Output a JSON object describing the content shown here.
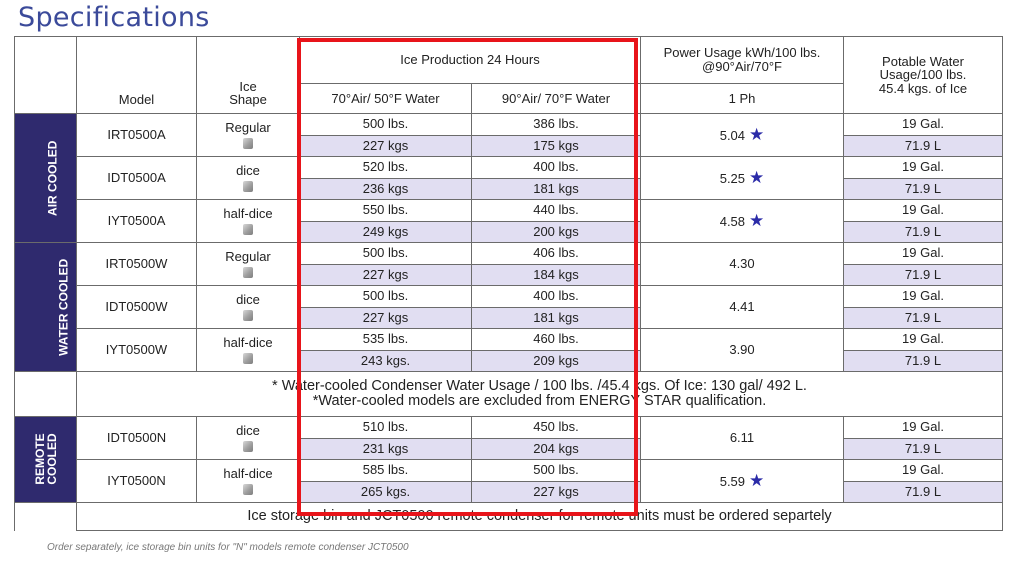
{
  "title": "Specifications",
  "headers": {
    "model": "Model",
    "ice_shape": "Ice Shape",
    "ice_production": "Ice Production 24 Hours",
    "condition_1": "70°Air/ 50°F Water",
    "condition_2": "90°Air/ 70°F Water",
    "power_usage": "Power Usage kWh/100 lbs. @90°Air/70°F",
    "phase": "1 Ph",
    "potable_water": "Potable Water Usage/100 lbs. 45.4 kgs. of Ice"
  },
  "groups": [
    {
      "label": "AIR COOLED",
      "rows": [
        {
          "model": "IRT0500A",
          "shape": "Regular",
          "p1_lbs": "500 lbs.",
          "p1_kgs": "227 kgs",
          "p2_lbs": "386 lbs.",
          "p2_kgs": "175 kgs",
          "power": "5.04",
          "energy_star": true,
          "water_gal": "19 Gal.",
          "water_l": "71.9 L"
        },
        {
          "model": "IDT0500A",
          "shape": "dice",
          "p1_lbs": "520 lbs.",
          "p1_kgs": "236 kgs",
          "p2_lbs": "400 lbs.",
          "p2_kgs": "181 kgs",
          "power": "5.25",
          "energy_star": true,
          "water_gal": "19 Gal.",
          "water_l": "71.9 L"
        },
        {
          "model": "IYT0500A",
          "shape": "half-dice",
          "p1_lbs": "550 lbs.",
          "p1_kgs": "249 kgs",
          "p2_lbs": "440 lbs.",
          "p2_kgs": "200 kgs",
          "power": "4.58",
          "energy_star": true,
          "water_gal": "19 Gal.",
          "water_l": "71.9 L"
        }
      ]
    },
    {
      "label": "WATER COOLED",
      "rows": [
        {
          "model": "IRT0500W",
          "shape": "Regular",
          "p1_lbs": "500 lbs.",
          "p1_kgs": "227 kgs",
          "p2_lbs": "406 lbs.",
          "p2_kgs": "184 kgs",
          "power": "4.30",
          "energy_star": false,
          "water_gal": "19 Gal.",
          "water_l": "71.9 L"
        },
        {
          "model": "IDT0500W",
          "shape": "dice",
          "p1_lbs": "500 lbs.",
          "p1_kgs": "227 kgs",
          "p2_lbs": "400 lbs.",
          "p2_kgs": "181 kgs",
          "power": "4.41",
          "energy_star": false,
          "water_gal": "19 Gal.",
          "water_l": "71.9 L"
        },
        {
          "model": "IYT0500W",
          "shape": "half-dice",
          "p1_lbs": "535 lbs.",
          "p1_kgs": "243 kgs.",
          "p2_lbs": "460 lbs.",
          "p2_kgs": "209 kgs",
          "power": "3.90",
          "energy_star": false,
          "water_gal": "19 Gal.",
          "water_l": "71.9 L"
        }
      ]
    },
    {
      "label": "REMOTE COOLED",
      "rows": [
        {
          "model": "IDT0500N",
          "shape": "dice",
          "p1_lbs": "510 lbs.",
          "p1_kgs": "231 kgs",
          "p2_lbs": "450 lbs.",
          "p2_kgs": "204 kgs",
          "power": "6.11",
          "energy_star": false,
          "water_gal": "19 Gal.",
          "water_l": "71.9 L"
        },
        {
          "model": "IYT0500N",
          "shape": "half-dice",
          "p1_lbs": "585 lbs.",
          "p1_kgs": "265 kgs.",
          "p2_lbs": "500 lbs.",
          "p2_kgs": "227 kgs",
          "power": "5.59",
          "energy_star": true,
          "water_gal": "19 Gal.",
          "water_l": "71.9 L"
        }
      ]
    }
  ],
  "water_note_1": "* Water-cooled Condenser Water Usage / 100 lbs. /45.4 kgs. Of Ice: 130 gal/ 492 L.",
  "water_note_2": "*Water-cooled models are excluded from ENERGY STAR qualification.",
  "remote_note": "Ice storage bin and JCT0500 remote condenser for remote units must be ordered separtely",
  "footnote": "Order separately, ice storage bin units for \"N\" models remote condenser JCT0500",
  "star_symbol": "★",
  "colors": {
    "title": "#3b4a9a",
    "category_bg": "#2f2a6e",
    "row_shade": "#e1def2",
    "highlight_box": "#e8141a",
    "star": "#2b2ba8"
  }
}
